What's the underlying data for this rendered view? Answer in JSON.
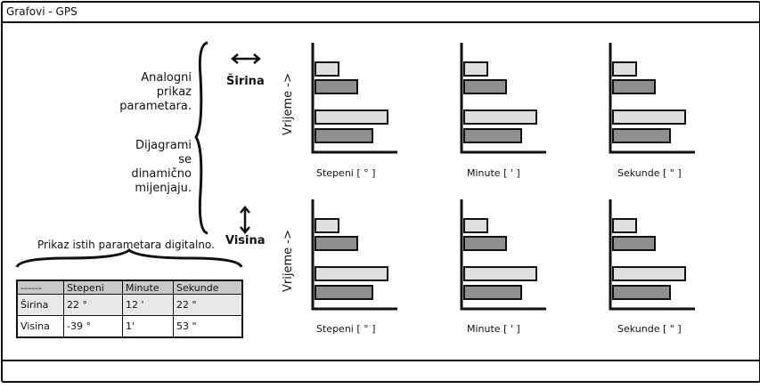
{
  "window": {
    "title": "Grafovi - GPS"
  },
  "notes": {
    "analog": [
      "Analogni",
      "prikaz",
      "parametara."
    ],
    "dynamic": [
      "Dijagrami",
      "se",
      "dinamično",
      "mijenjaju."
    ],
    "digital_caption": "Prikaz istih parametara digitalno."
  },
  "axes": {
    "latitude_label": "Širina",
    "altitude_label": "Visina",
    "time_label": "Vrijeme ->"
  },
  "charts": [
    {
      "row": "Širina",
      "label": "Stepeni [ ° ]",
      "values": [
        0.3,
        0.55,
        0.95,
        0.75
      ]
    },
    {
      "row": "Širina",
      "label": "Minute [ ' ]",
      "values": [
        0.3,
        0.55,
        0.95,
        0.75
      ]
    },
    {
      "row": "Širina",
      "label": "Sekunde [ \" ]",
      "values": [
        0.3,
        0.55,
        0.95,
        0.75
      ]
    },
    {
      "row": "Visina",
      "label": "Stepeni [ ° ]",
      "values": [
        0.3,
        0.55,
        0.95,
        0.75
      ]
    },
    {
      "row": "Visina",
      "label": "Minute [ ' ]",
      "values": [
        0.3,
        0.55,
        0.95,
        0.75
      ]
    },
    {
      "row": "Visina",
      "label": "Sekunde [ \" ]",
      "values": [
        0.3,
        0.55,
        0.95,
        0.75
      ]
    }
  ],
  "bar_colors": [
    "#e0e0e0",
    "#8f8f8f",
    "#e0e0e0",
    "#8f8f8f"
  ],
  "table": {
    "headers": [
      "------",
      "Stepeni",
      "Minute",
      "Sekunde"
    ],
    "rows": [
      [
        "Širina",
        "22 °",
        "12 '",
        "22 \""
      ],
      [
        "Visina",
        "-39 °",
        "1'",
        "53 \""
      ]
    ]
  }
}
